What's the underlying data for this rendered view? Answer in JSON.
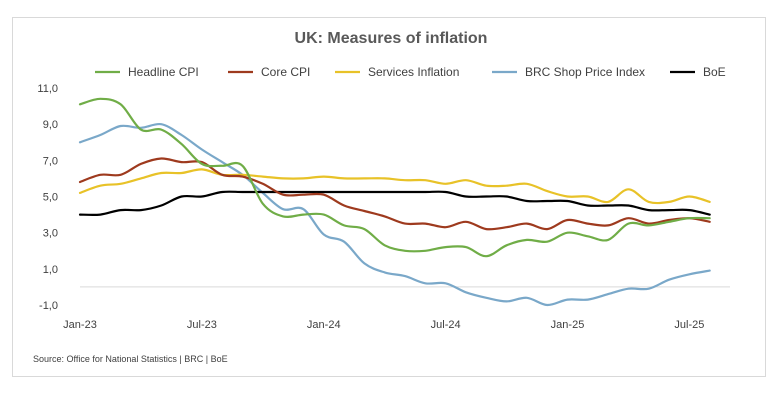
{
  "chart_data": {
    "type": "line",
    "title": "UK: Measures of inflation",
    "source": "Source: Office for National Statistics | BRC | BoE",
    "x_ticks": [
      "Jan-23",
      "Jul-23",
      "Jan-24",
      "Jul-24",
      "Jan-25",
      "Jul-25"
    ],
    "y_ticks": [
      "11,0",
      "9,0",
      "7,0",
      "5,0",
      "3,0",
      "1,0",
      "-1,0"
    ],
    "ylim": [
      -1.0,
      11.0
    ],
    "x_range": [
      "Jan-23",
      "Sep-25"
    ],
    "grid": false,
    "legend_position": "top",
    "series": [
      {
        "name": "Headline CPI",
        "color": "#70ad47",
        "x": [
          "2023-01",
          "2023-02",
          "2023-03",
          "2023-04",
          "2023-05",
          "2023-06",
          "2023-07",
          "2023-08",
          "2023-09",
          "2023-10",
          "2023-11",
          "2023-12",
          "2024-01",
          "2024-02",
          "2024-03",
          "2024-04",
          "2024-05",
          "2024-06",
          "2024-07",
          "2024-08",
          "2024-09",
          "2024-10",
          "2024-11",
          "2024-12",
          "2025-01",
          "2025-02",
          "2025-03",
          "2025-04",
          "2025-05",
          "2025-06",
          "2025-07",
          "2025-08"
        ],
        "values": [
          10.1,
          10.4,
          10.1,
          8.7,
          8.7,
          7.9,
          6.8,
          6.7,
          6.7,
          4.6,
          3.9,
          4.0,
          4.0,
          3.4,
          3.2,
          2.3,
          2.0,
          2.0,
          2.2,
          2.2,
          1.7,
          2.3,
          2.6,
          2.5,
          3.0,
          2.8,
          2.6,
          3.5,
          3.4,
          3.6,
          3.8,
          3.8
        ]
      },
      {
        "name": "Core CPI",
        "color": "#9e3a1e",
        "x": [
          "2023-01",
          "2023-02",
          "2023-03",
          "2023-04",
          "2023-05",
          "2023-06",
          "2023-07",
          "2023-08",
          "2023-09",
          "2023-10",
          "2023-11",
          "2023-12",
          "2024-01",
          "2024-02",
          "2024-03",
          "2024-04",
          "2024-05",
          "2024-06",
          "2024-07",
          "2024-08",
          "2024-09",
          "2024-10",
          "2024-11",
          "2024-12",
          "2025-01",
          "2025-02",
          "2025-03",
          "2025-04",
          "2025-05",
          "2025-06",
          "2025-07",
          "2025-08"
        ],
        "values": [
          5.8,
          6.2,
          6.2,
          6.8,
          7.1,
          6.9,
          6.9,
          6.2,
          6.1,
          5.7,
          5.1,
          5.1,
          5.1,
          4.5,
          4.2,
          3.9,
          3.5,
          3.5,
          3.3,
          3.6,
          3.2,
          3.3,
          3.5,
          3.2,
          3.7,
          3.5,
          3.4,
          3.8,
          3.5,
          3.7,
          3.8,
          3.6
        ]
      },
      {
        "name": "Services Inflation",
        "color": "#e8c228",
        "x": [
          "2023-01",
          "2023-02",
          "2023-03",
          "2023-04",
          "2023-05",
          "2023-06",
          "2023-07",
          "2023-08",
          "2023-09",
          "2023-10",
          "2023-11",
          "2023-12",
          "2024-01",
          "2024-02",
          "2024-03",
          "2024-04",
          "2024-05",
          "2024-06",
          "2024-07",
          "2024-08",
          "2024-09",
          "2024-10",
          "2024-11",
          "2024-12",
          "2025-01",
          "2025-02",
          "2025-03",
          "2025-04",
          "2025-05",
          "2025-06",
          "2025-07",
          "2025-08"
        ],
        "values": [
          5.2,
          5.6,
          5.7,
          6.0,
          6.3,
          6.3,
          6.5,
          6.2,
          6.2,
          6.1,
          6.0,
          6.0,
          6.1,
          6.0,
          6.0,
          6.0,
          5.9,
          5.9,
          5.7,
          5.9,
          5.6,
          5.6,
          5.7,
          5.3,
          5.0,
          5.0,
          4.7,
          5.4,
          4.7,
          4.7,
          5.0,
          4.7
        ]
      },
      {
        "name": "BRC Shop Price Index",
        "color": "#7aa8c9",
        "x": [
          "2023-01",
          "2023-02",
          "2023-03",
          "2023-04",
          "2023-05",
          "2023-06",
          "2023-07",
          "2023-08",
          "2023-09",
          "2023-10",
          "2023-11",
          "2023-12",
          "2024-01",
          "2024-02",
          "2024-03",
          "2024-04",
          "2024-05",
          "2024-06",
          "2024-07",
          "2024-08",
          "2024-09",
          "2024-10",
          "2024-11",
          "2024-12",
          "2025-01",
          "2025-02",
          "2025-03",
          "2025-04",
          "2025-05",
          "2025-06",
          "2025-07",
          "2025-08"
        ],
        "values": [
          8.0,
          8.4,
          8.9,
          8.8,
          9.0,
          8.4,
          7.6,
          6.9,
          6.2,
          5.2,
          4.3,
          4.3,
          2.9,
          2.5,
          1.3,
          0.8,
          0.6,
          0.2,
          0.2,
          -0.3,
          -0.6,
          -0.8,
          -0.6,
          -1.0,
          -0.7,
          -0.7,
          -0.4,
          -0.1,
          -0.1,
          0.4,
          0.7,
          0.9
        ]
      },
      {
        "name": "BoE",
        "color": "#000000",
        "x": [
          "2023-01",
          "2023-02",
          "2023-03",
          "2023-04",
          "2023-05",
          "2023-06",
          "2023-07",
          "2023-08",
          "2023-09",
          "2023-10",
          "2023-11",
          "2023-12",
          "2024-01",
          "2024-02",
          "2024-03",
          "2024-04",
          "2024-05",
          "2024-06",
          "2024-07",
          "2024-08",
          "2024-09",
          "2024-10",
          "2024-11",
          "2024-12",
          "2025-01",
          "2025-02",
          "2025-03",
          "2025-04",
          "2025-05",
          "2025-06",
          "2025-07",
          "2025-08"
        ],
        "values": [
          4.0,
          4.0,
          4.25,
          4.25,
          4.5,
          5.0,
          5.0,
          5.25,
          5.25,
          5.25,
          5.25,
          5.25,
          5.25,
          5.25,
          5.25,
          5.25,
          5.25,
          5.25,
          5.25,
          5.0,
          5.0,
          5.0,
          4.75,
          4.75,
          4.75,
          4.5,
          4.5,
          4.5,
          4.25,
          4.25,
          4.25,
          4.0
        ]
      }
    ]
  }
}
